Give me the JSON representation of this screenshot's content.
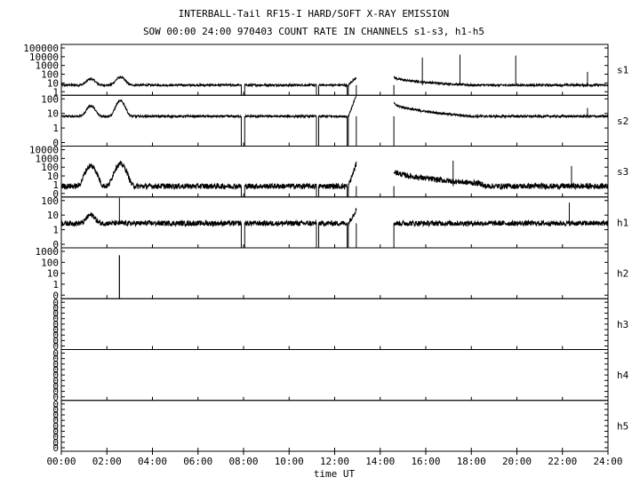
{
  "chart_data": {
    "type": "line",
    "title": "INTERBALL-Tail RF15-I HARD/SOFT X-RAY EMISSION",
    "subtitle": "SOW 00:00 24:00 970403  COUNT RATE IN CHANNELS s1-s3, h1-h5",
    "xlabel": "time UT",
    "x_ticks": [
      "00:00",
      "02:00",
      "04:00",
      "06:00",
      "08:00",
      "10:00",
      "12:00",
      "14:00",
      "16:00",
      "18:00",
      "20:00",
      "22:00",
      "24:00"
    ],
    "xlim_hours": [
      0,
      24
    ],
    "y_scale": "log",
    "grid": false,
    "gaps_hours": [
      [
        7.9,
        8.05
      ],
      [
        11.2,
        11.3
      ],
      [
        12.55,
        12.6
      ],
      [
        12.95,
        14.6
      ]
    ],
    "panels": [
      {
        "name": "s1",
        "y_ticks": [
          "100000",
          "10000",
          "1000",
          "100",
          "10",
          "1"
        ],
        "ylim_log10": [
          0,
          5
        ],
        "base": 10,
        "noise_log10": 0.1,
        "peaks": [
          {
            "x": 1.3,
            "y": 40
          },
          {
            "x": 2.6,
            "y": 60
          }
        ],
        "spikes": [
          {
            "x": 15.85,
            "y": 5000
          },
          {
            "x": 17.5,
            "y": 10000
          },
          {
            "x": 19.95,
            "y": 8000
          },
          {
            "x": 23.1,
            "y": 200
          }
        ],
        "decay_after_gap": {
          "x": 14.6,
          "from": 60,
          "to": 10,
          "until": 18.0
        },
        "recovery": {
          "x": 12.9,
          "from": 10,
          "to": 60
        }
      },
      {
        "name": "s2",
        "y_ticks": [
          "100",
          "10",
          "1",
          "0"
        ],
        "ylim_log10": [
          -0.4,
          2.5
        ],
        "base": 20,
        "noise_log10": 0.06,
        "peaks": [
          {
            "x": 1.3,
            "y": 80
          },
          {
            "x": 2.6,
            "y": 150
          }
        ],
        "spikes": [
          {
            "x": 23.1,
            "y": 60
          }
        ],
        "decay_after_gap": {
          "x": 14.6,
          "from": 120,
          "to": 20,
          "until": 18.0
        },
        "recovery": {
          "x": 12.9,
          "from": 20,
          "to": 300
        }
      },
      {
        "name": "s3",
        "y_ticks": [
          "10000",
          "1000",
          "100",
          "10",
          "1",
          "0"
        ],
        "ylim_log10": [
          -0.5,
          4.1
        ],
        "base": 3,
        "noise_log10": 0.25,
        "peaks": [
          {
            "x": 1.3,
            "y": 200
          },
          {
            "x": 2.6,
            "y": 300
          }
        ],
        "spikes": [
          {
            "x": 17.2,
            "y": 600
          },
          {
            "x": 22.4,
            "y": 200
          }
        ],
        "decay_after_gap": {
          "x": 14.6,
          "from": 80,
          "to": 5,
          "until": 18.5
        },
        "recovery": {
          "x": 12.9,
          "from": 3,
          "to": 300
        }
      },
      {
        "name": "h1",
        "y_ticks": [
          "100",
          "10",
          "1",
          "0"
        ],
        "ylim_log10": [
          -0.4,
          2.5
        ],
        "base": 10,
        "noise_log10": 0.15,
        "peaks": [
          {
            "x": 1.3,
            "y": 30
          }
        ],
        "spikes": [
          {
            "x": 2.55,
            "y": 300
          },
          {
            "x": 22.3,
            "y": 150
          }
        ],
        "decay_after_gap": null,
        "recovery": {
          "x": 12.9,
          "from": 10,
          "to": 60
        }
      },
      {
        "name": "h2",
        "y_ticks": [
          "1000",
          "100",
          "10",
          "1",
          "0"
        ],
        "ylim_log10": [
          -0.6,
          3.0
        ],
        "base": 0,
        "noise_log10": 0,
        "peaks": [],
        "spikes": [
          {
            "x": 2.55,
            "y": 300
          }
        ],
        "decay_after_gap": null,
        "recovery": null
      },
      {
        "name": "h3",
        "y_ticks": [
          "0",
          "0",
          "0",
          "0",
          "0",
          "0",
          "0",
          "0",
          "0"
        ],
        "ylim_log10": [
          0,
          1
        ],
        "base": 0,
        "noise_log10": 0,
        "peaks": [],
        "spikes": [],
        "decay_after_gap": null,
        "recovery": null
      },
      {
        "name": "h4",
        "y_ticks": [
          "0",
          "0",
          "0",
          "0",
          "0",
          "0",
          "0",
          "0",
          "0"
        ],
        "ylim_log10": [
          0,
          1
        ],
        "base": 0,
        "noise_log10": 0,
        "peaks": [],
        "spikes": [],
        "decay_after_gap": null,
        "recovery": null
      },
      {
        "name": "h5",
        "y_ticks": [
          "0",
          "0",
          "0",
          "0",
          "0",
          "0",
          "0",
          "0",
          "0"
        ],
        "ylim_log10": [
          0,
          1
        ],
        "base": 0,
        "noise_log10": 0,
        "peaks": [],
        "spikes": [],
        "decay_after_gap": null,
        "recovery": null
      }
    ]
  }
}
